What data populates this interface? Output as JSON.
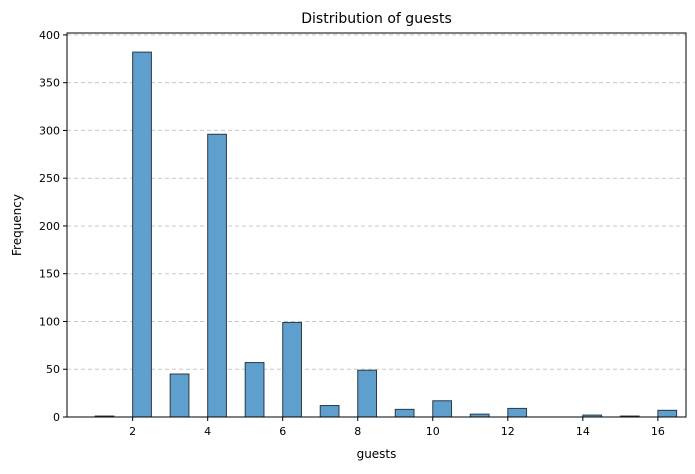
{
  "chart_data": {
    "type": "bar",
    "title": "Distribution of guests",
    "xlabel": "guests",
    "ylabel": "Frequency",
    "bin_width": 0.5,
    "bins": [
      {
        "start": 1.0,
        "value": 1
      },
      {
        "start": 2.0,
        "value": 382
      },
      {
        "start": 3.0,
        "value": 45
      },
      {
        "start": 4.0,
        "value": 296
      },
      {
        "start": 5.0,
        "value": 57
      },
      {
        "start": 6.0,
        "value": 99
      },
      {
        "start": 7.0,
        "value": 12
      },
      {
        "start": 8.0,
        "value": 49
      },
      {
        "start": 9.0,
        "value": 8
      },
      {
        "start": 10.0,
        "value": 17
      },
      {
        "start": 11.0,
        "value": 3
      },
      {
        "start": 12.0,
        "value": 9
      },
      {
        "start": 14.0,
        "value": 2
      },
      {
        "start": 15.0,
        "value": 1
      },
      {
        "start": 16.0,
        "value": 7
      }
    ],
    "xlim": [
      0.25,
      16.75
    ],
    "ylim": [
      0,
      402
    ],
    "xticks": [
      2,
      4,
      6,
      8,
      10,
      12,
      14,
      16
    ],
    "yticks": [
      0,
      50,
      100,
      150,
      200,
      250,
      300,
      350,
      400
    ],
    "grid": "y-dashed",
    "bar_color": "#5f9fcd",
    "bar_edge_color": "#2b3a45"
  }
}
